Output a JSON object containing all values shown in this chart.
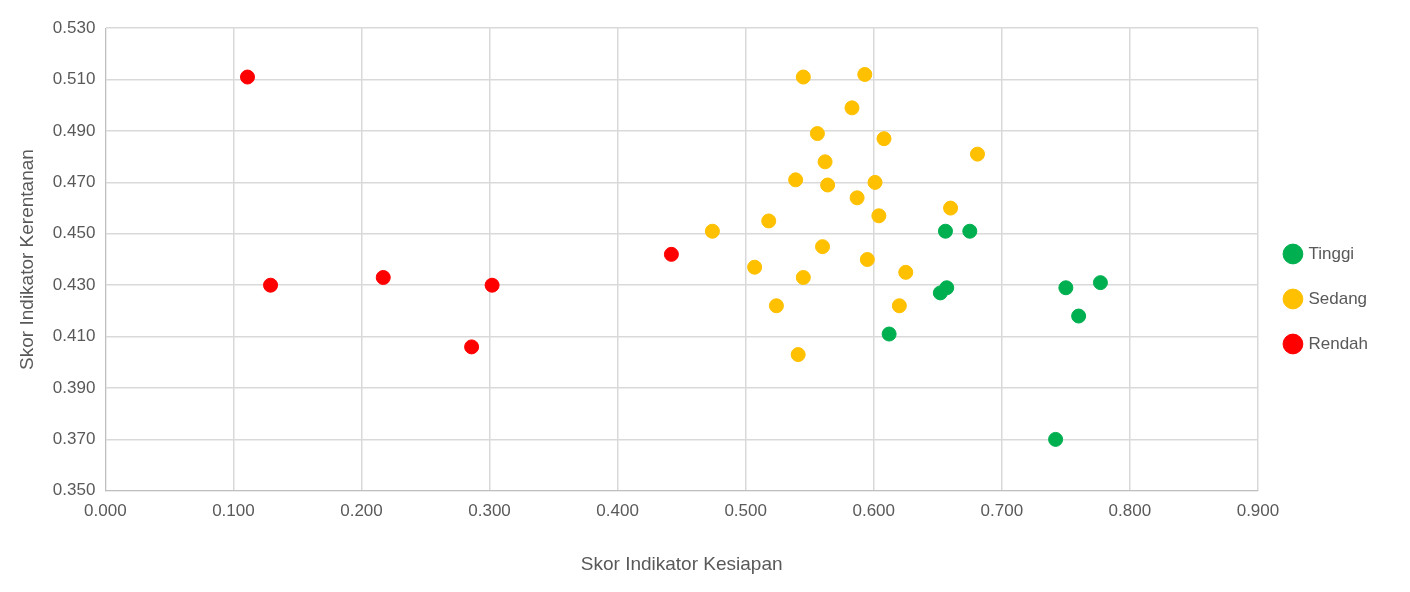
{
  "chart_data": {
    "type": "scatter",
    "xlabel": "Skor Indikator Kesiapan",
    "ylabel": "Skor Indikator Kerentanan",
    "xlim": [
      0,
      0.9
    ],
    "ylim": [
      0.35,
      0.53
    ],
    "xticks": [
      {
        "value": 0,
        "label": "0.000"
      },
      {
        "value": 0.1,
        "label": "0.100"
      },
      {
        "value": 0.2,
        "label": "0.200"
      },
      {
        "value": 0.3,
        "label": "0.300"
      },
      {
        "value": 0.4,
        "label": "0.400"
      },
      {
        "value": 0.5,
        "label": "0.500"
      },
      {
        "value": 0.6,
        "label": "0.600"
      },
      {
        "value": 0.7,
        "label": "0.700"
      },
      {
        "value": 0.8,
        "label": "0.800"
      },
      {
        "value": 0.9,
        "label": "0.900"
      }
    ],
    "yticks": [
      {
        "value": 0.35,
        "label": "0.350"
      },
      {
        "value": 0.37,
        "label": "0.370"
      },
      {
        "value": 0.39,
        "label": "0.390"
      },
      {
        "value": 0.41,
        "label": "0.410"
      },
      {
        "value": 0.43,
        "label": "0.430"
      },
      {
        "value": 0.45,
        "label": "0.450"
      },
      {
        "value": 0.47,
        "label": "0.470"
      },
      {
        "value": 0.49,
        "label": "0.490"
      },
      {
        "value": 0.51,
        "label": "0.510"
      },
      {
        "value": 0.53,
        "label": "0.530"
      }
    ],
    "grid": true,
    "legend": "right",
    "marker": "circle",
    "series": [
      {
        "name": "Tinggi",
        "color": "#00b050",
        "x": [
          0.656,
          0.675,
          0.657,
          0.652,
          0.612,
          0.75,
          0.777,
          0.76,
          0.742
        ],
        "values": [
          0.451,
          0.451,
          0.429,
          0.427,
          0.411,
          0.429,
          0.431,
          0.418,
          0.37
        ]
      },
      {
        "name": "Sedang",
        "color": "#ffc000",
        "x": [
          0.545,
          0.593,
          0.583,
          0.556,
          0.608,
          0.681,
          0.562,
          0.539,
          0.564,
          0.601,
          0.587,
          0.604,
          0.66,
          0.518,
          0.474,
          0.56,
          0.595,
          0.507,
          0.625,
          0.545,
          0.524,
          0.62,
          0.541
        ],
        "values": [
          0.511,
          0.512,
          0.499,
          0.489,
          0.487,
          0.481,
          0.478,
          0.471,
          0.469,
          0.47,
          0.464,
          0.457,
          0.46,
          0.455,
          0.451,
          0.445,
          0.44,
          0.437,
          0.435,
          0.433,
          0.422,
          0.422,
          0.403
        ]
      },
      {
        "name": "Rendah",
        "color": "#ff0000",
        "x": [
          0.111,
          0.129,
          0.217,
          0.302,
          0.286,
          0.442
        ],
        "values": [
          0.511,
          0.43,
          0.433,
          0.43,
          0.406,
          0.442
        ]
      }
    ]
  }
}
